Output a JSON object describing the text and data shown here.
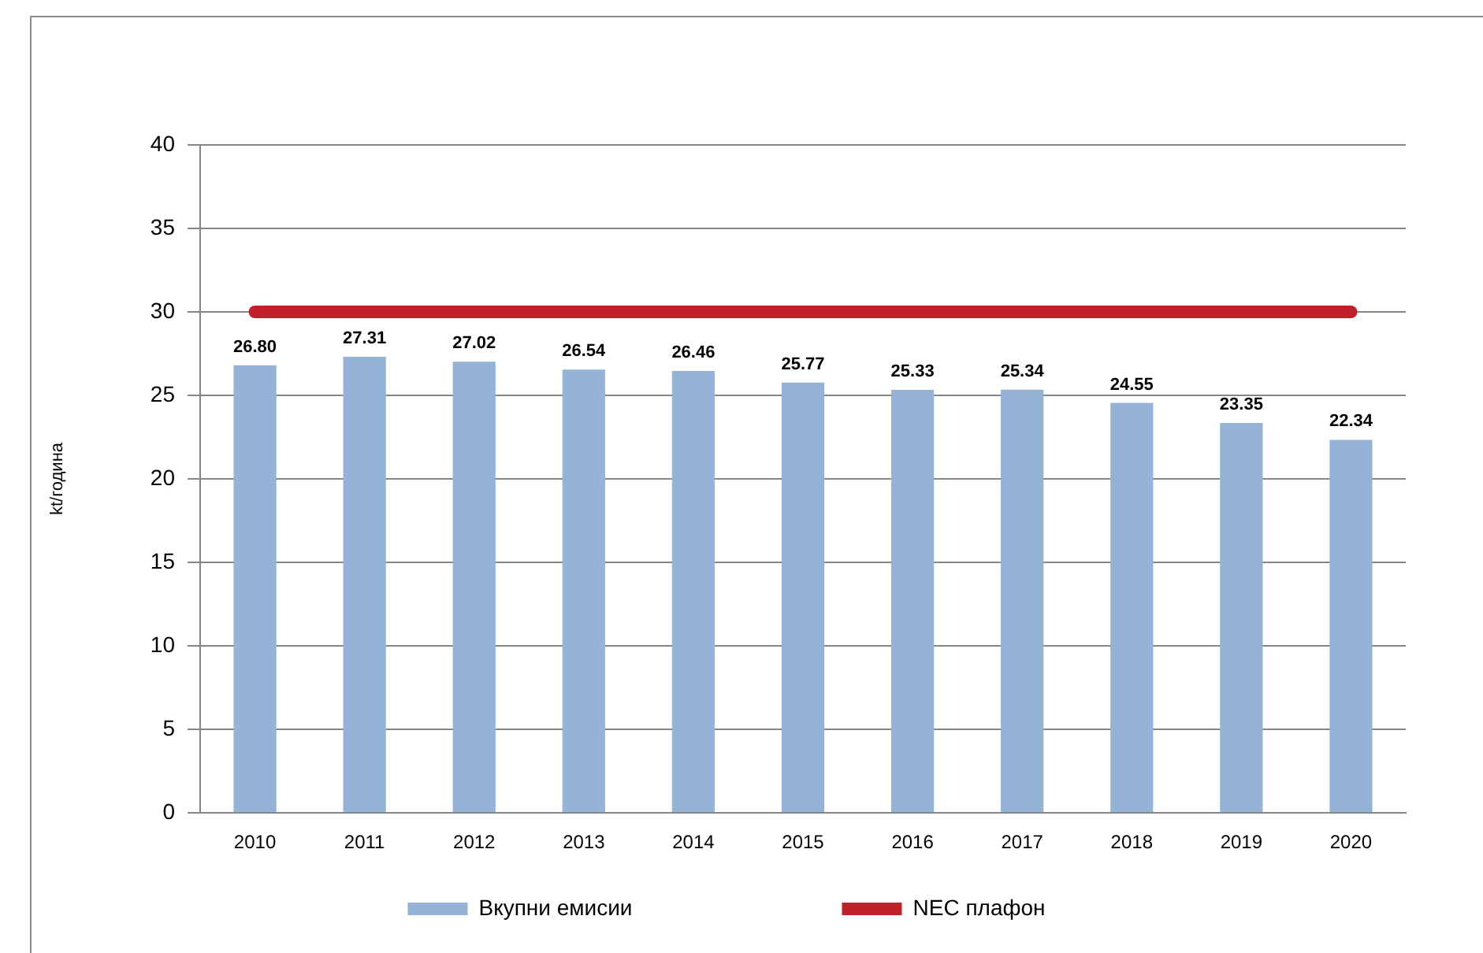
{
  "chart_data": {
    "type": "bar",
    "ylabel": "kt/година",
    "categories": [
      "2010",
      "2011",
      "2012",
      "2013",
      "2014",
      "2015",
      "2016",
      "2017",
      "2018",
      "2019",
      "2020"
    ],
    "series": [
      {
        "name": "Вкупни емисии",
        "color": "#95b3d7",
        "values": [
          26.8,
          27.31,
          27.02,
          26.54,
          26.46,
          25.77,
          25.33,
          25.34,
          24.55,
          23.35,
          22.34
        ],
        "value_labels": [
          "26.80",
          "27.31",
          "27.02",
          "26.54",
          "26.46",
          "25.77",
          "25.33",
          "25.34",
          "24.55",
          "23.35",
          "22.34"
        ]
      },
      {
        "name": "NEC плафон",
        "type": "line",
        "color": "#c0202a",
        "values": [
          30,
          30,
          30,
          30,
          30,
          30,
          30,
          30,
          30,
          30,
          30
        ],
        "marker": "none",
        "line_style": "solid"
      }
    ],
    "ylim": [
      0,
      40
    ],
    "yticks": [
      0,
      5,
      10,
      15,
      20,
      25,
      30,
      35,
      40
    ],
    "grid": "y",
    "legend": "bottom"
  }
}
